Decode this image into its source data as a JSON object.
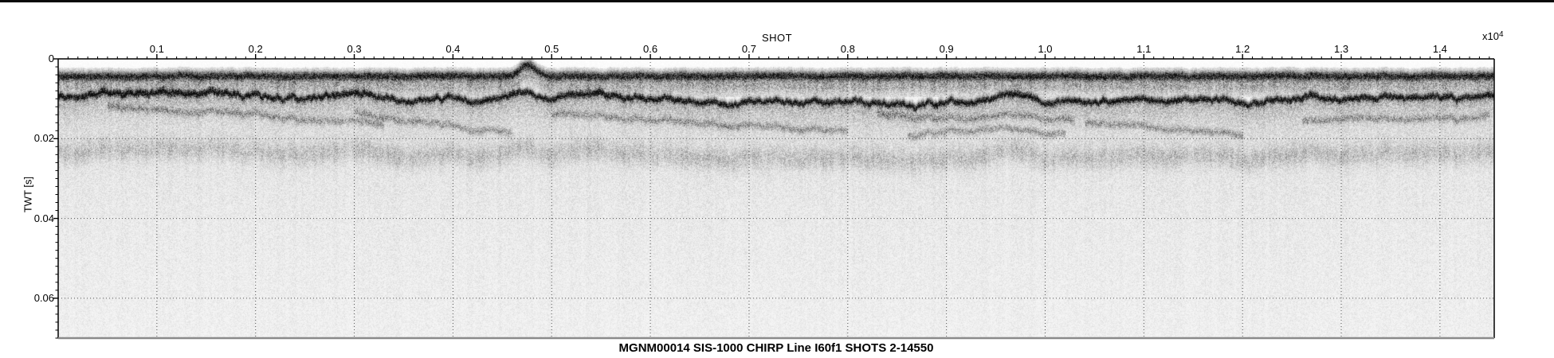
{
  "chart_data": {
    "type": "heatmap",
    "subtype": "sub-bottom seismic reflection (CHIRP) profile, grayscale amplitude image",
    "title": "MGNM00014 SIS-1000 CHIRP Line I60f1 SHOTS 2-14550",
    "xlabel": "SHOT",
    "x_multiplier_base": "x10",
    "x_multiplier_exp": "4",
    "ylabel": "TWT [s]",
    "x_tick_labels": [
      "0.1",
      "0.2",
      "0.3",
      "0.4",
      "0.5",
      "0.6",
      "0.7",
      "0.8",
      "0.9",
      "1.0",
      "1.1",
      "1.2",
      "1.3",
      "1.4"
    ],
    "y_tick_labels": [
      "0",
      "0.02",
      "0.04",
      "0.06"
    ],
    "xlim_shots": [
      2,
      14550
    ],
    "xlim_x10k": [
      0,
      1.455
    ],
    "ylim_twt_s": [
      0,
      0.07
    ],
    "x_major_step_x10k": 0.1,
    "x_minor_step_x10k": 0.01,
    "y_major_step_s": 0.02,
    "y_minor_step_s": 0.002,
    "grid_style": "dotted",
    "legend": "none",
    "colors": {
      "ink": "#000000",
      "bottom_spine": "#8a8a8a",
      "grid_dots": "#555555",
      "background": "#ffffff"
    },
    "features": {
      "direct_arrival_twt_s": 0.0042,
      "surface_bump": {
        "shot_x10k": 0.475,
        "top_twt_s": 0.0012,
        "half_width_x10k": 0.011,
        "amplitude_s": 0.0028
      },
      "reverberation_band_s": [
        0.005,
        0.009
      ],
      "seafloor_multiple_offset_s": 0.0142,
      "penetration_fade_twt_s": 0.03,
      "seafloor_profile": {
        "shot_x10k": [
          0.0,
          0.04,
          0.08,
          0.12,
          0.16,
          0.2,
          0.24,
          0.28,
          0.32,
          0.36,
          0.4,
          0.44,
          0.47,
          0.5,
          0.54,
          0.58,
          0.62,
          0.66,
          0.7,
          0.75,
          0.8,
          0.85,
          0.9,
          0.93,
          0.97,
          1.0,
          1.05,
          1.1,
          1.15,
          1.2,
          1.24,
          1.27,
          1.3,
          1.35,
          1.4,
          1.43,
          1.455
        ],
        "twt_s": [
          0.0092,
          0.0086,
          0.0083,
          0.0081,
          0.0088,
          0.0097,
          0.0094,
          0.0087,
          0.009,
          0.0102,
          0.0094,
          0.01,
          0.0079,
          0.0091,
          0.0082,
          0.0092,
          0.0101,
          0.0108,
          0.0109,
          0.0106,
          0.0105,
          0.0111,
          0.0109,
          0.0103,
          0.0088,
          0.0103,
          0.0106,
          0.0103,
          0.01,
          0.0106,
          0.0104,
          0.0091,
          0.0102,
          0.0089,
          0.0098,
          0.0091,
          0.0093
        ]
      },
      "subbottom_reflectors": [
        {
          "shot_x10k": [
            0.05,
            0.13,
            0.2,
            0.27,
            0.33
          ],
          "twt_s": [
            0.0118,
            0.0132,
            0.0142,
            0.0152,
            0.0163
          ]
        },
        {
          "shot_x10k": [
            0.3,
            0.36,
            0.42,
            0.46
          ],
          "twt_s": [
            0.0136,
            0.0154,
            0.0172,
            0.0183
          ]
        },
        {
          "shot_x10k": [
            0.5,
            0.58,
            0.66,
            0.74,
            0.8
          ],
          "twt_s": [
            0.0132,
            0.0147,
            0.0163,
            0.0174,
            0.0179
          ]
        },
        {
          "shot_x10k": [
            0.83,
            0.9,
            0.97,
            1.03
          ],
          "twt_s": [
            0.0137,
            0.015,
            0.0141,
            0.0154
          ]
        },
        {
          "shot_x10k": [
            0.86,
            0.95,
            1.02
          ],
          "twt_s": [
            0.0188,
            0.0174,
            0.0186
          ]
        },
        {
          "shot_x10k": [
            1.04,
            1.12,
            1.2
          ],
          "twt_s": [
            0.0158,
            0.0174,
            0.019
          ]
        },
        {
          "shot_x10k": [
            1.26,
            1.33,
            1.4,
            1.45
          ],
          "twt_s": [
            0.0156,
            0.0146,
            0.0151,
            0.0143
          ]
        }
      ]
    }
  }
}
